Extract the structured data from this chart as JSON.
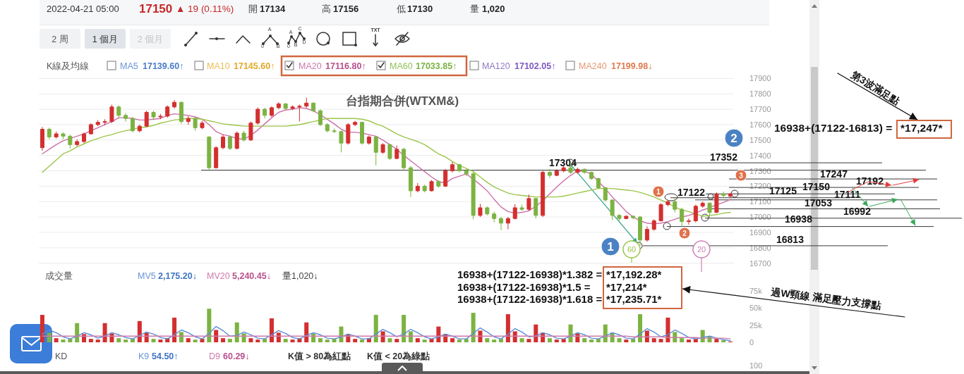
{
  "chart_data": [
    {
      "type": "other",
      "annotations": [
        "2022-04-21 05:00",
        "17150",
        "▲ 19 (0.11%)",
        "開",
        "17134",
        "高",
        "17156",
        "低",
        "17130",
        "量",
        "1,020",
        "2 周",
        "1 個月",
        "2 個月",
        "A",
        "0",
        "B",
        "A",
        "C",
        "0",
        "B",
        "D",
        "TXT",
        "K線及均線",
        "MA5",
        "17139.60↑",
        "MA10",
        "17145.60↑",
        "MA20",
        "17116.80↑",
        "MA60",
        "17033.85↑",
        "MA120",
        "17102.05↑",
        "MA240",
        "17199.98↓"
      ]
    },
    {
      "type": "candlestick",
      "title": "台指期合併(WTXM&)",
      "categories": [
        null,
        null,
        null,
        null,
        null,
        null,
        null,
        null,
        null,
        null,
        null,
        null,
        null,
        null,
        null,
        null,
        null,
        null,
        null,
        null,
        null,
        null,
        null,
        null,
        null,
        null,
        null,
        null,
        null,
        null,
        null,
        null,
        null,
        null,
        null,
        null,
        null,
        null,
        null,
        null,
        null,
        null,
        null,
        null,
        null,
        null,
        null,
        null,
        null,
        null,
        null,
        null,
        null,
        null,
        null,
        null,
        null,
        null,
        null,
        null,
        null,
        null,
        null,
        null,
        null,
        null,
        null,
        null,
        null,
        null,
        null,
        null,
        null,
        null,
        null,
        null,
        null,
        null,
        null,
        null,
        null,
        null,
        null,
        null,
        null,
        null,
        null,
        null,
        null,
        null,
        null,
        null,
        null,
        null,
        null,
        null,
        null,
        null,
        null,
        null
      ],
      "ohlc": [
        [
          17450,
          17585,
          17430,
          17570
        ],
        [
          17570,
          17580,
          17505,
          17520
        ],
        [
          17520,
          17555,
          17510,
          17540
        ],
        [
          17540,
          17550,
          17505,
          17525
        ],
        [
          17525,
          17535,
          17445,
          17470
        ],
        [
          17470,
          17505,
          17460,
          17490
        ],
        [
          17490,
          17550,
          17480,
          17540
        ],
        [
          17540,
          17610,
          17535,
          17600
        ],
        [
          17600,
          17630,
          17590,
          17615
        ],
        [
          17615,
          17635,
          17595,
          17620
        ],
        [
          17620,
          17730,
          17610,
          17715
        ],
        [
          17715,
          17725,
          17640,
          17660
        ],
        [
          17660,
          17675,
          17620,
          17640
        ],
        [
          17640,
          17650,
          17550,
          17560
        ],
        [
          17560,
          17600,
          17550,
          17590
        ],
        [
          17590,
          17690,
          17585,
          17680
        ],
        [
          17680,
          17690,
          17630,
          17650
        ],
        [
          17650,
          17670,
          17635,
          17655
        ],
        [
          17655,
          17725,
          17645,
          17715
        ],
        [
          17715,
          17760,
          17705,
          17745
        ],
        [
          17745,
          17750,
          17605,
          17620
        ],
        [
          17620,
          17655,
          17600,
          17640
        ],
        [
          17640,
          17650,
          17560,
          17580
        ],
        [
          17580,
          17625,
          17570,
          17610
        ],
        [
          17520,
          17525,
          17300,
          17320
        ],
        [
          17320,
          17460,
          17315,
          17450
        ],
        [
          17450,
          17535,
          17440,
          17520
        ],
        [
          17520,
          17530,
          17435,
          17445
        ],
        [
          17445,
          17555,
          17440,
          17545
        ],
        [
          17545,
          17560,
          17490,
          17500
        ],
        [
          17500,
          17620,
          17495,
          17610
        ],
        [
          17610,
          17712,
          17600,
          17700
        ],
        [
          17700,
          17710,
          17640,
          17660
        ],
        [
          17660,
          17720,
          17650,
          17710
        ],
        [
          17710,
          17745,
          17700,
          17735
        ],
        [
          17735,
          17740,
          17695,
          17705
        ],
        [
          17705,
          17725,
          17695,
          17715
        ],
        [
          17715,
          17730,
          17620,
          17720
        ],
        [
          17720,
          17775,
          17710,
          17740
        ],
        [
          17740,
          17745,
          17680,
          17690
        ],
        [
          17690,
          17700,
          17590,
          17600
        ],
        [
          17600,
          17610,
          17550,
          17560
        ],
        [
          17560,
          17575,
          17545,
          17555
        ],
        [
          17555,
          17560,
          17420,
          17480
        ],
        [
          17480,
          17610,
          17470,
          17600
        ],
        [
          17600,
          17625,
          17590,
          17615
        ],
        [
          17615,
          17620,
          17470,
          17480
        ],
        [
          17480,
          17530,
          17470,
          17520
        ],
        [
          17520,
          17525,
          17335,
          17420
        ],
        [
          17420,
          17480,
          17410,
          17470
        ],
        [
          17470,
          17475,
          17370,
          17380
        ],
        [
          17380,
          17465,
          17375,
          17440
        ],
        [
          17440,
          17450,
          17300,
          17320
        ],
        [
          17320,
          17330,
          17130,
          17170
        ],
        [
          17170,
          17220,
          17160,
          17200
        ],
        [
          17200,
          17210,
          17160,
          17170
        ],
        [
          17170,
          17240,
          17165,
          17230
        ],
        [
          17230,
          17240,
          17190,
          17200
        ],
        [
          17200,
          17312,
          17195,
          17300
        ],
        [
          17300,
          17357,
          17290,
          17340
        ],
        [
          17340,
          17345,
          17290,
          17300
        ],
        [
          17300,
          17310,
          17265,
          17280
        ],
        [
          17280,
          17290,
          16985,
          17010
        ],
        [
          17010,
          17085,
          17000,
          17060
        ],
        [
          17060,
          17070,
          17010,
          17020
        ],
        [
          17020,
          17035,
          16965,
          16990
        ],
        [
          16990,
          17000,
          16915,
          16960
        ],
        [
          16960,
          17000,
          16920,
          16990
        ],
        [
          16990,
          17083,
          16985,
          17060
        ],
        [
          17060,
          17080,
          17040,
          17050
        ],
        [
          17050,
          17145,
          17040,
          17120
        ],
        [
          17120,
          17125,
          16990,
          17010
        ],
        [
          17010,
          17300,
          17000,
          17290
        ],
        [
          17290,
          17312,
          17252,
          17270
        ],
        [
          17270,
          17310,
          17265,
          17300
        ],
        [
          17300,
          17330,
          17290,
          17320
        ],
        [
          17320,
          17352,
          17280,
          17290
        ],
        [
          17290,
          17320,
          17280,
          17310
        ],
        [
          17310,
          17315,
          17280,
          17290
        ],
        [
          17290,
          17295,
          17240,
          17250
        ],
        [
          17250,
          17255,
          17185,
          17190
        ],
        [
          17190,
          17195,
          17100,
          17110
        ],
        [
          17110,
          17115,
          16980,
          17010
        ],
        [
          17010,
          17020,
          16975,
          16990
        ],
        [
          16990,
          17010,
          16985,
          17005
        ],
        [
          17005,
          17010,
          16985,
          16995
        ],
        [
          17000,
          17005,
          16813,
          16850
        ],
        [
          16850,
          16940,
          16840,
          16920
        ],
        [
          16920,
          16985,
          16910,
          16975
        ],
        [
          16975,
          17090,
          16970,
          17080
        ],
        [
          17080,
          17110,
          17070,
          17100
        ],
        [
          17100,
          17122,
          17030,
          17050
        ],
        [
          17050,
          17060,
          16938,
          16970
        ],
        [
          16970,
          16990,
          16950,
          16975
        ],
        [
          16975,
          17080,
          16965,
          17070
        ],
        [
          17070,
          17100,
          17060,
          17090
        ],
        [
          17090,
          17095,
          16992,
          17030
        ],
        [
          17030,
          17160,
          17025,
          17150
        ],
        [
          17150,
          17165,
          17125,
          17140
        ],
        [
          17134,
          17156,
          17130,
          17150
        ]
      ],
      "colors": [
        "#d32f2f",
        "#7cb342",
        "#d32f2f",
        "#7cb342",
        "#7cb342",
        "#d32f2f",
        "#d32f2f",
        "#d32f2f",
        "#d32f2f",
        "#d32f2f",
        "#d32f2f",
        "#7cb342",
        "#7cb342",
        "#7cb342",
        "#d32f2f",
        "#d32f2f",
        "#7cb342",
        "#d32f2f",
        "#d32f2f",
        "#d32f2f",
        "#7cb342",
        "#d32f2f",
        "#7cb342",
        "#d32f2f",
        "#7cb342",
        "#d32f2f",
        "#d32f2f",
        "#7cb342",
        "#d32f2f",
        "#7cb342",
        "#d32f2f",
        "#d32f2f",
        "#7cb342",
        "#d32f2f",
        "#d32f2f",
        "#7cb342",
        "#d32f2f",
        "#d32f2f",
        "#d32f2f",
        "#7cb342",
        "#7cb342",
        "#7cb342",
        "#7cb342",
        "#7cb342",
        "#d32f2f",
        "#d32f2f",
        "#7cb342",
        "#d32f2f",
        "#7cb342",
        "#d32f2f",
        "#7cb342",
        "#d32f2f",
        "#7cb342",
        "#7cb342",
        "#d32f2f",
        "#7cb342",
        "#d32f2f",
        "#7cb342",
        "#d32f2f",
        "#d32f2f",
        "#7cb342",
        "#7cb342",
        "#7cb342",
        "#d32f2f",
        "#7cb342",
        "#7cb342",
        "#7cb342",
        "#d32f2f",
        "#d32f2f",
        "#7cb342",
        "#d32f2f",
        "#7cb342",
        "#d32f2f",
        "#7cb342",
        "#d32f2f",
        "#d32f2f",
        "#7cb342",
        "#d32f2f",
        "#7cb342",
        "#7cb342",
        "#7cb342",
        "#7cb342",
        "#7cb342",
        "#7cb342",
        "#d32f2f",
        "#7cb342",
        "#7cb342",
        "#d32f2f",
        "#d32f2f",
        "#d32f2f",
        "#d32f2f",
        "#7cb342",
        "#7cb342",
        "#d32f2f",
        "#d32f2f",
        "#d32f2f",
        "#7cb342",
        "#d32f2f",
        "#7cb342",
        "#d32f2f"
      ],
      "series": [
        {
          "type": "line",
          "color": "#cc6fa8",
          "values": [
            17410,
            17440,
            17470,
            17495,
            17510,
            17525,
            17540,
            17560,
            17580,
            17600,
            17620,
            17645,
            17645,
            17640,
            17630,
            17630,
            17635,
            17640,
            17660,
            17670,
            17665,
            17660,
            17650,
            17635,
            17600,
            17555,
            17535,
            17525,
            17510,
            17505,
            17530,
            17565,
            17605,
            17645,
            17680,
            17695,
            17700,
            17710,
            17705,
            17690,
            17665,
            17635,
            17605,
            17570,
            17550,
            17550,
            17545,
            17535,
            17525,
            17500,
            17470,
            17440,
            17400,
            17365,
            17330,
            17295,
            17260,
            17230,
            17220,
            17250,
            17265,
            17280,
            17245,
            17210,
            17170,
            17115,
            17065,
            17035,
            17025,
            17030,
            17040,
            17070,
            17105,
            17150,
            17195,
            17235,
            17270,
            17300,
            17295,
            17280,
            17230,
            17185,
            17130,
            17085,
            17035,
            17000,
            16975,
            16960,
            16955,
            16960,
            16970,
            16985,
            17000,
            17010,
            17025,
            17045,
            17060,
            17080,
            17095,
            17115
          ]
        },
        {
          "type": "line",
          "color": "#9cc54a",
          "values": [
            17290,
            17330,
            17370,
            17410,
            17430,
            17455,
            17475,
            17495,
            17510,
            17525,
            17535,
            17550,
            17560,
            17570,
            17580,
            17585,
            17595,
            17610,
            17620,
            17630,
            17635,
            17640,
            17640,
            17635,
            17625,
            17615,
            17605,
            17600,
            17595,
            17590,
            17590,
            17590,
            17590,
            17590,
            17590,
            17590,
            17595,
            17600,
            17610,
            17620,
            17630,
            17640,
            17640,
            17640,
            17640,
            17640,
            17635,
            17625,
            17605,
            17590,
            17565,
            17540,
            17520,
            17505,
            17490,
            17470,
            17440,
            17410,
            17390,
            17360,
            17335,
            17315,
            17295,
            17260,
            17225,
            17195,
            17175,
            17155,
            17145,
            17140,
            17135,
            17130,
            17130,
            17130,
            17130,
            17135,
            17145,
            17155,
            17165,
            17175,
            17185,
            17185,
            17185,
            17180,
            17175,
            17170,
            17160,
            17145,
            17130,
            17110,
            17090,
            17065,
            17045,
            17035,
            17020,
            17005,
            17010,
            17015,
            17025,
            17030
          ]
        }
      ],
      "ylim": [
        16700,
        17900
      ],
      "yticks": [
        16700,
        16800,
        16900,
        17000,
        17100,
        17200,
        17300,
        17400,
        17500,
        17600,
        17700,
        17800,
        17900
      ],
      "tick_labels": "y",
      "grid": "y",
      "ref_lines": [
        {
          "axis": "y",
          "value": 17352,
          "label": "17352"
        },
        {
          "axis": "y",
          "value": 17304,
          "label": "17304"
        },
        {
          "axis": "y",
          "value": 17247,
          "label": "17247"
        },
        {
          "axis": "y",
          "value": 17192,
          "label": "17192"
        },
        {
          "axis": "y",
          "value": 17150,
          "label": "17150"
        },
        {
          "axis": "y",
          "value": 17125,
          "label": "17125"
        },
        {
          "axis": "y",
          "value": 17111,
          "label": "17111"
        },
        {
          "axis": "y",
          "value": 17053,
          "label": "17053"
        },
        {
          "axis": "y",
          "value": 16992,
          "label": "16992"
        },
        {
          "axis": "y",
          "value": 16938,
          "label": "16938"
        },
        {
          "axis": "y",
          "value": 16813,
          "label": "16813"
        }
      ],
      "annotations": [
        {
          "text": "17122",
          "y": 17122
        },
        "1",
        "2",
        "1",
        "2",
        "3",
        "60",
        "20",
        "16938+(17122-16813) =",
        "*17,247*",
        "第3波滿足點",
        "16938+(17122-16938)*1.382 =",
        "*17,192.28*",
        "16938+(17122-16938)*1.5 =",
        "*17,214*",
        "16938+(17122-16938)*1.618 =",
        "*17,235.71*",
        "過W頸線 滿足壓力支撐點"
      ]
    },
    {
      "type": "bar",
      "title": "成交量",
      "categories": [
        null,
        null,
        null,
        null,
        null,
        null,
        null,
        null,
        null,
        null,
        null,
        null,
        null,
        null,
        null,
        null,
        null,
        null,
        null,
        null,
        null,
        null,
        null,
        null,
        null,
        null,
        null,
        null,
        null,
        null,
        null,
        null,
        null,
        null,
        null,
        null,
        null,
        null,
        null,
        null,
        null,
        null,
        null,
        null,
        null,
        null,
        null,
        null,
        null,
        null,
        null,
        null,
        null,
        null,
        null,
        null,
        null,
        null,
        null,
        null,
        null,
        null,
        null,
        null,
        null,
        null,
        null,
        null,
        null,
        null,
        null,
        null,
        null,
        null,
        null,
        null,
        null,
        null,
        null,
        null,
        null,
        null,
        null,
        null,
        null,
        null,
        null,
        null,
        null,
        null,
        null,
        null,
        null,
        null,
        null,
        null,
        null,
        null,
        null,
        null
      ],
      "series": [
        {
          "values": [
            40000,
            14000,
            6000,
            4000,
            5000,
            28000,
            12000,
            5000,
            4000,
            28000,
            13000,
            6000,
            4000,
            5000,
            31000,
            14000,
            5000,
            4000,
            6000,
            36000,
            15000,
            6000,
            4000,
            5000,
            49000,
            18000,
            6000,
            5000,
            29000,
            13000,
            6000,
            4000,
            5000,
            35000,
            14000,
            5000,
            4000,
            6000,
            29000,
            13000,
            6000,
            4000,
            5000,
            23000,
            12000,
            5000,
            4000,
            6000,
            40000,
            16000,
            6000,
            5000,
            40000,
            16000,
            6000,
            4000,
            5000,
            23000,
            12000,
            6000,
            4000,
            5000,
            43000,
            17000,
            6000,
            4000,
            5000,
            41000,
            16000,
            6000,
            5000,
            26000,
            14000,
            6000,
            4000,
            5000,
            26000,
            13000,
            6000,
            4000,
            5000,
            26000,
            14000,
            6000,
            4000,
            5000,
            41000,
            17000,
            6000,
            5000,
            36000,
            15000,
            6000,
            4000,
            5000,
            18000,
            9000,
            5000,
            3000,
            1000
          ],
          "colors": [
            "#d32f2f",
            "#7cb342",
            "#d32f2f",
            "#7cb342",
            "#7cb342",
            "#7cb342",
            "#d32f2f",
            "#d32f2f",
            "#d32f2f",
            "#d32f2f",
            "#d32f2f",
            "#7cb342",
            "#7cb342",
            "#7cb342",
            "#d32f2f",
            "#d32f2f",
            "#7cb342",
            "#d32f2f",
            "#d32f2f",
            "#d32f2f",
            "#7cb342",
            "#d32f2f",
            "#7cb342",
            "#d32f2f",
            "#7cb342",
            "#d32f2f",
            "#d32f2f",
            "#7cb342",
            "#7cb342",
            "#7cb342",
            "#d32f2f",
            "#d32f2f",
            "#7cb342",
            "#d32f2f",
            "#d32f2f",
            "#7cb342",
            "#d32f2f",
            "#d32f2f",
            "#d32f2f",
            "#7cb342",
            "#7cb342",
            "#7cb342",
            "#7cb342",
            "#7cb342",
            "#d32f2f",
            "#d32f2f",
            "#7cb342",
            "#d32f2f",
            "#7cb342",
            "#d32f2f",
            "#7cb342",
            "#d32f2f",
            "#7cb342",
            "#7cb342",
            "#d32f2f",
            "#7cb342",
            "#d32f2f",
            "#d32f2f",
            "#d32f2f",
            "#d32f2f",
            "#7cb342",
            "#7cb342",
            "#7cb342",
            "#d32f2f",
            "#7cb342",
            "#7cb342",
            "#7cb342",
            "#d32f2f",
            "#d32f2f",
            "#7cb342",
            "#d32f2f",
            "#d32f2f",
            "#d32f2f",
            "#7cb342",
            "#d32f2f",
            "#d32f2f",
            "#7cb342",
            "#d32f2f",
            "#7cb342",
            "#7cb342",
            "#7cb342",
            "#7cb342",
            "#7cb342",
            "#7cb342",
            "#d32f2f",
            "#7cb342",
            "#7cb342",
            "#d32f2f",
            "#d32f2f",
            "#d32f2f",
            "#d32f2f",
            "#7cb342",
            "#7cb342",
            "#d32f2f",
            "#d32f2f",
            "#7cb342",
            "#7cb342",
            "#d32f2f",
            "#7cb342",
            "#d32f2f"
          ]
        },
        {
          "type": "line",
          "color": "#5b8ed6",
          "values": [
            12000,
            18000,
            14000,
            8000,
            5000,
            9000,
            14000,
            11000,
            6000,
            9000,
            14000,
            11000,
            7000,
            5000,
            10000,
            15000,
            12000,
            7000,
            5000,
            11000,
            18000,
            14000,
            8000,
            5000,
            13000,
            23000,
            17000,
            9000,
            10000,
            15000,
            11000,
            6000,
            5000,
            11000,
            17000,
            13000,
            7000,
            5000,
            10000,
            14000,
            11000,
            6000,
            5000,
            8000,
            12000,
            9000,
            5000,
            5000,
            12000,
            19000,
            14000,
            8000,
            12000,
            19000,
            14000,
            8000,
            5000,
            8000,
            12000,
            9000,
            5000,
            5000,
            13000,
            21000,
            15000,
            8000,
            5000,
            12000,
            20000,
            15000,
            8000,
            9000,
            14000,
            11000,
            6000,
            5000,
            9000,
            14000,
            11000,
            6000,
            5000,
            9000,
            14000,
            11000,
            6000,
            5000,
            12000,
            20000,
            15000,
            8000,
            11000,
            18000,
            13000,
            7000,
            5000,
            7000,
            9000,
            6000,
            4000,
            2000
          ]
        },
        {
          "type": "line",
          "color": "#d07aad",
          "values": [
            9000,
            9000,
            9000,
            9000,
            9000,
            9000,
            9000,
            9000,
            9000,
            9000,
            9000,
            9000,
            9000,
            9000,
            9000,
            9000,
            9000,
            9000,
            9000,
            9000,
            9000,
            9000,
            9000,
            9000,
            9000,
            9000,
            9000,
            9000,
            9000,
            9000,
            9000,
            9000,
            9000,
            9000,
            9000,
            9000,
            9000,
            9000,
            9000,
            9000,
            9000,
            9000,
            9000,
            9000,
            9000,
            9000,
            9000,
            9000,
            9000,
            9000,
            9000,
            9000,
            9000,
            9000,
            9000,
            9000,
            9000,
            9000,
            9000,
            9000,
            9000,
            9000,
            9000,
            9000,
            9000,
            9000,
            9000,
            9000,
            9000,
            9000,
            9000,
            9000,
            9000,
            9000,
            9000,
            9000,
            9000,
            9000,
            9000,
            9000,
            9000,
            9000,
            9000,
            9000,
            9000,
            8000,
            8000,
            8000,
            8000,
            8000,
            7000,
            7000,
            7000,
            7000,
            7000,
            6000,
            6000,
            6000,
            6000,
            5000
          ]
        }
      ],
      "ylim": [
        0,
        75000
      ],
      "yticks": [
        0,
        {
          "value": 25000,
          "label": "25k"
        },
        {
          "value": 50000,
          "label": "50k"
        },
        {
          "value": 75000,
          "label": "75k"
        }
      ],
      "tick_labels": "y",
      "annotations": [
        "MV5",
        "2,175.20↓",
        "MV20",
        "5,240.45↓",
        "量1,020↓"
      ]
    },
    {
      "type": "other",
      "title": "KD",
      "annotations": [
        "K9",
        "54.50↑",
        "D9",
        "60.29↓",
        "K值 > 80為紅點",
        "K值 < 20為綠點",
        "100"
      ]
    }
  ]
}
